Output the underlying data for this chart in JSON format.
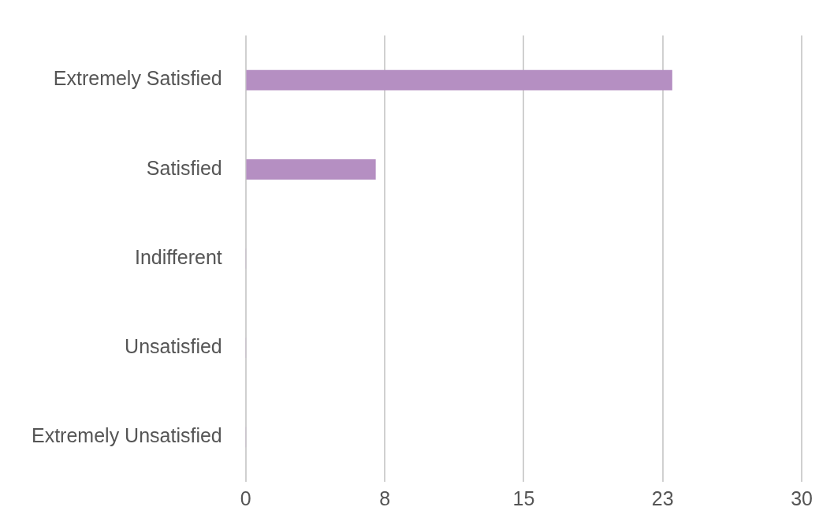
{
  "chart_data": {
    "type": "bar",
    "orientation": "horizontal",
    "categories": [
      "Extremely Satisfied",
      "Satisfied",
      "Indifferent",
      "Unsatisfied",
      "Extremely Unsatisfied"
    ],
    "values": [
      23,
      7,
      0,
      0,
      0
    ],
    "color": "#b58fc2",
    "xlim": [
      0,
      30
    ],
    "xticks": [
      0,
      {
        "value": 7.5,
        "label": "8"
      },
      15,
      {
        "value": 22.5,
        "label": "23"
      },
      30
    ],
    "grid": "x",
    "legend": false
  }
}
